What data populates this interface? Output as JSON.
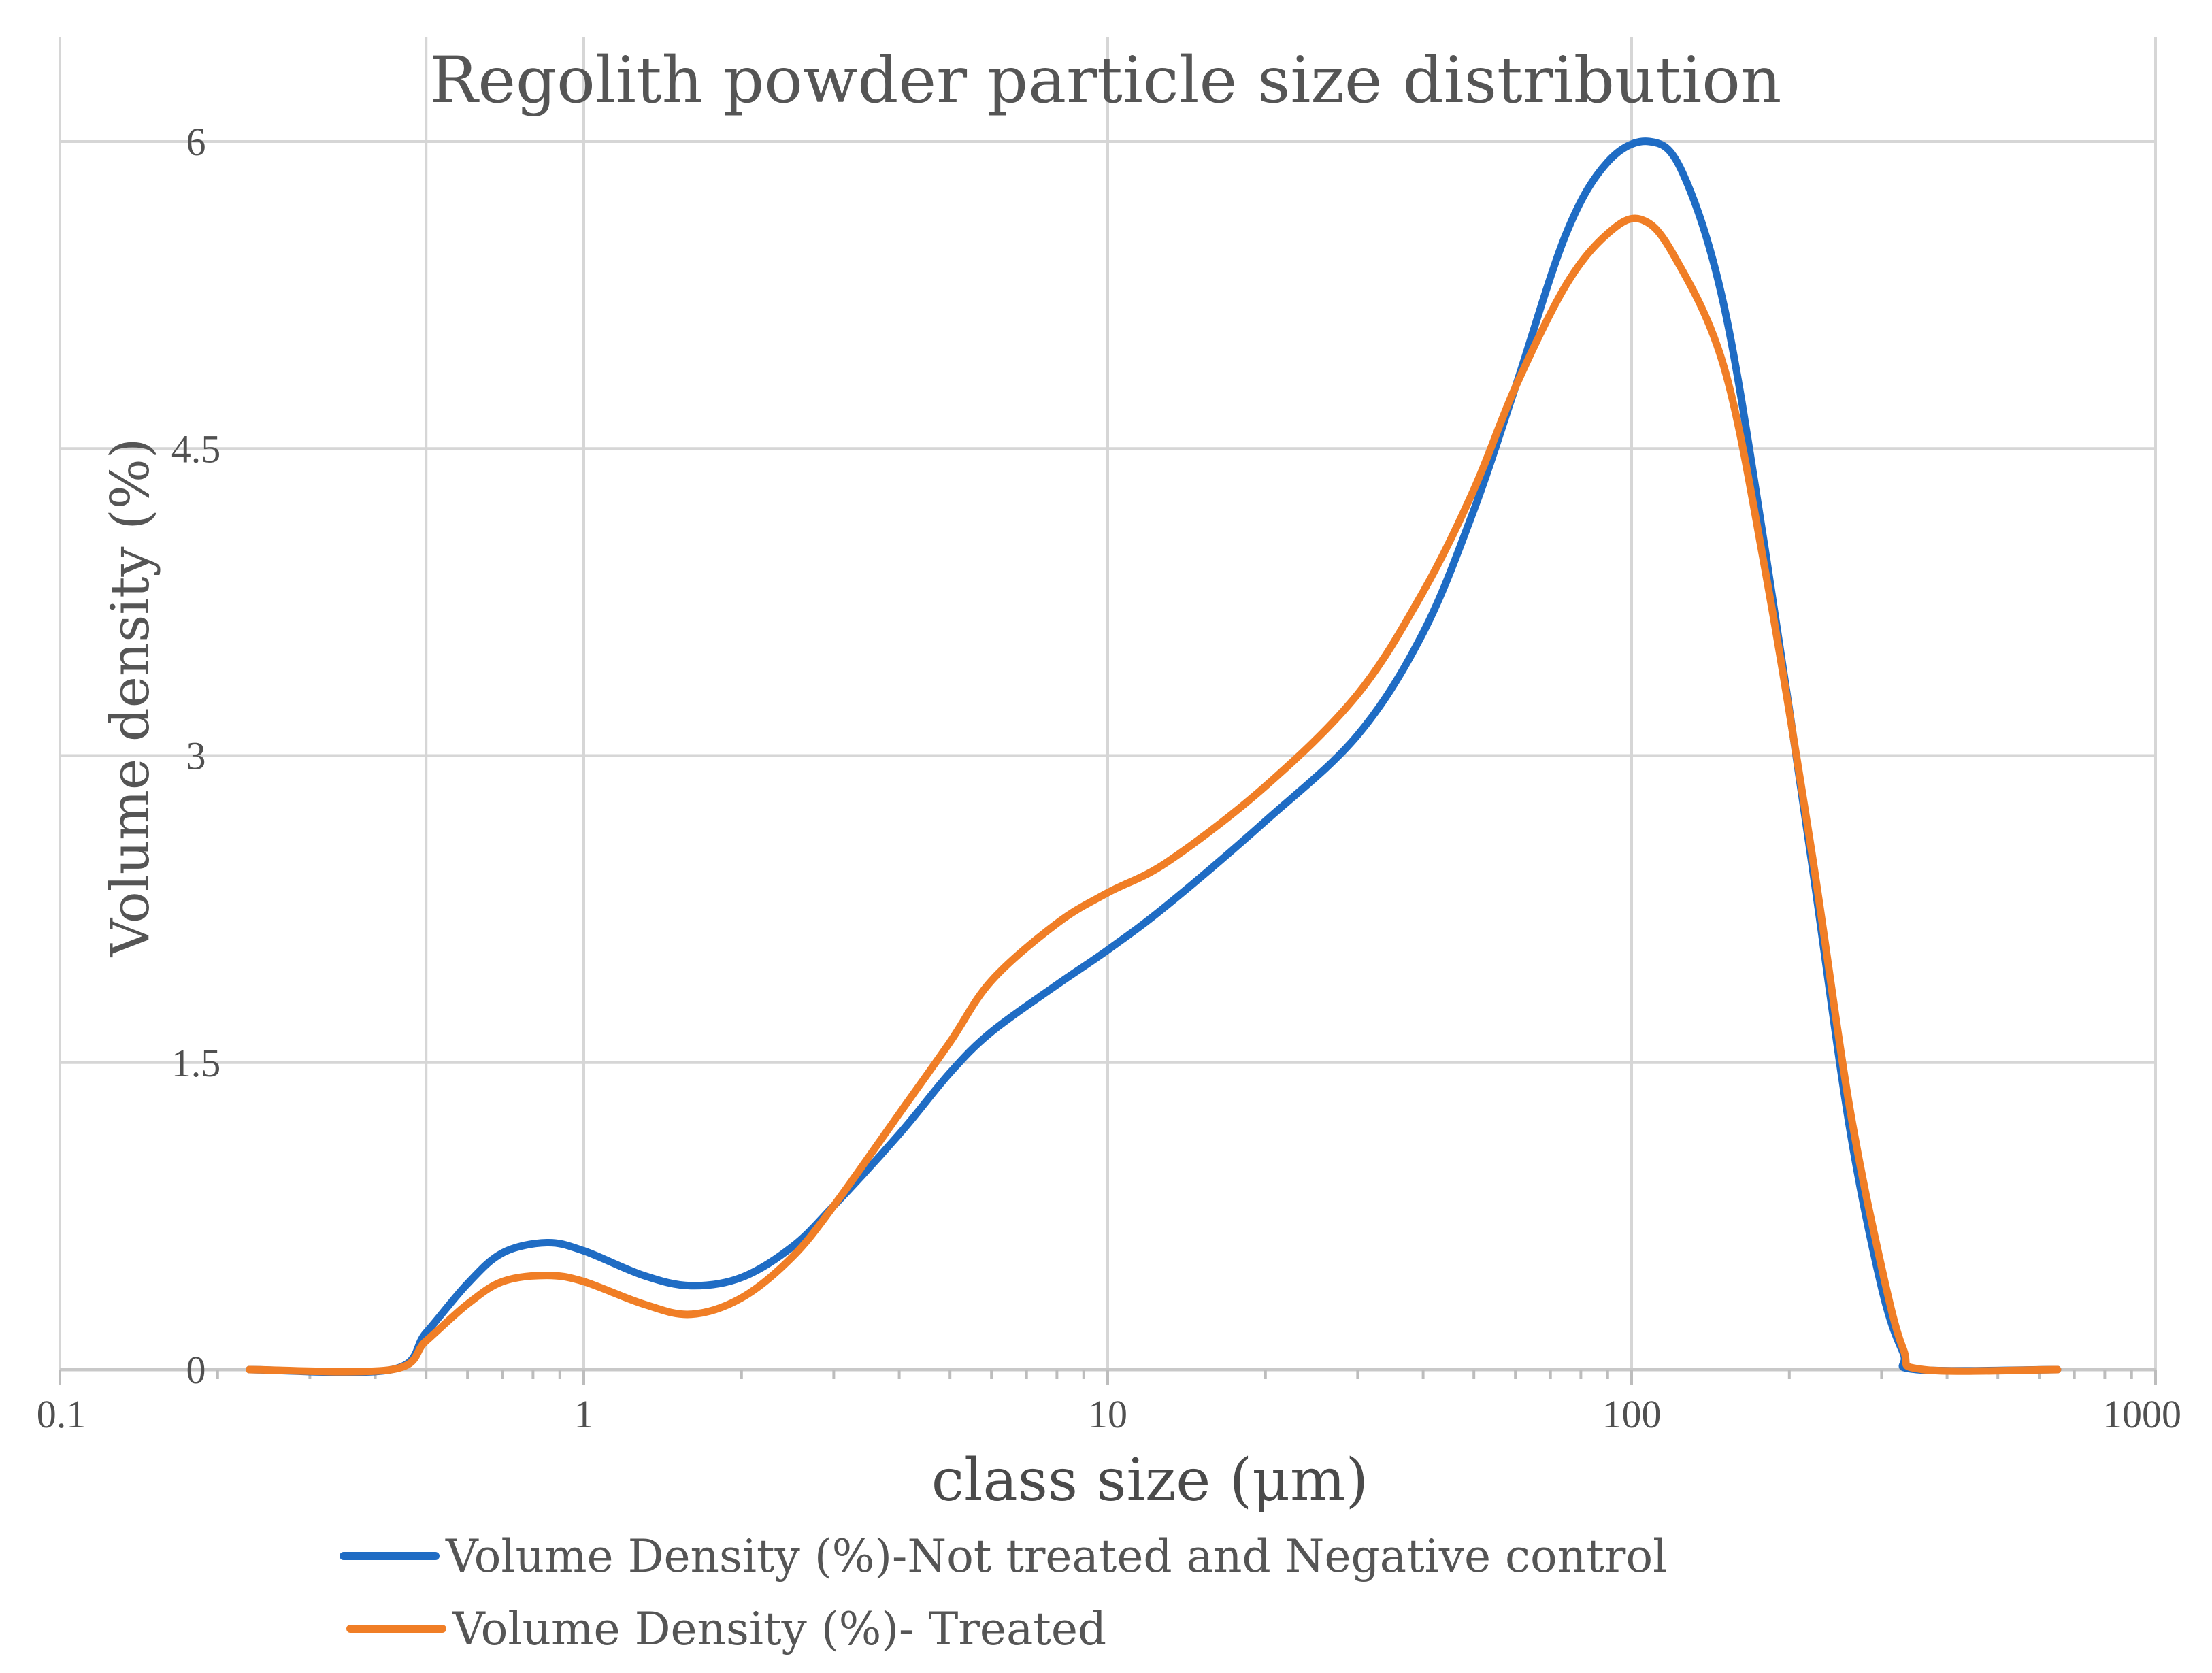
{
  "chart_data": {
    "type": "line",
    "title": "Regolith powder particle size distribution",
    "xlabel": "class size (μm)",
    "ylabel": "Volume density (%)",
    "xscale": "log",
    "xlim": [
      0.1,
      1000
    ],
    "ylim": [
      0,
      6
    ],
    "xticks": [
      0.1,
      1,
      10,
      100,
      1000
    ],
    "xtick_labels": [
      "0.1",
      "1",
      "10",
      "100",
      "1000"
    ],
    "yticks": [
      0,
      1.5,
      3,
      4.5,
      6
    ],
    "ytick_labels": [
      "0",
      "1.5",
      "3",
      "4.5",
      "6"
    ],
    "grid": true,
    "legend_position": "bottom",
    "series": [
      {
        "name": "Volume Density (%)-Not treated and Negative control",
        "color": "#1f6cc4",
        "points": [
          [
            0.23,
            0
          ],
          [
            0.43,
            0
          ],
          [
            0.5,
            0.18
          ],
          [
            0.6,
            0.42
          ],
          [
            0.7,
            0.57
          ],
          [
            0.85,
            0.62
          ],
          [
            1.0,
            0.58
          ],
          [
            1.3,
            0.46
          ],
          [
            1.6,
            0.41
          ],
          [
            2.0,
            0.45
          ],
          [
            2.5,
            0.6
          ],
          [
            3.0,
            0.8
          ],
          [
            4.0,
            1.15
          ],
          [
            5.0,
            1.45
          ],
          [
            6.0,
            1.65
          ],
          [
            8.0,
            1.88
          ],
          [
            10.0,
            2.05
          ],
          [
            13.0,
            2.27
          ],
          [
            20.0,
            2.68
          ],
          [
            30.0,
            3.1
          ],
          [
            40.0,
            3.6
          ],
          [
            50.0,
            4.2
          ],
          [
            60.0,
            4.8
          ],
          [
            75.0,
            5.55
          ],
          [
            90.0,
            5.9
          ],
          [
            108.0,
            6.0
          ],
          [
            125.0,
            5.85
          ],
          [
            150.0,
            5.2
          ],
          [
            180.0,
            4.0
          ],
          [
            220.0,
            2.5
          ],
          [
            260.0,
            1.2
          ],
          [
            300.0,
            0.4
          ],
          [
            330.0,
            0.08
          ],
          [
            350.0,
            0
          ],
          [
            650.0,
            0
          ]
        ]
      },
      {
        "name": "Volume Density (%)- Treated",
        "color": "#f07e26",
        "points": [
          [
            0.23,
            0
          ],
          [
            0.43,
            0
          ],
          [
            0.5,
            0.14
          ],
          [
            0.6,
            0.32
          ],
          [
            0.7,
            0.43
          ],
          [
            0.85,
            0.46
          ],
          [
            1.0,
            0.43
          ],
          [
            1.3,
            0.32
          ],
          [
            1.6,
            0.27
          ],
          [
            2.0,
            0.35
          ],
          [
            2.5,
            0.55
          ],
          [
            3.0,
            0.8
          ],
          [
            4.0,
            1.25
          ],
          [
            5.0,
            1.6
          ],
          [
            6.0,
            1.9
          ],
          [
            8.0,
            2.18
          ],
          [
            10.0,
            2.33
          ],
          [
            13.0,
            2.48
          ],
          [
            20.0,
            2.85
          ],
          [
            30.0,
            3.3
          ],
          [
            40.0,
            3.8
          ],
          [
            50.0,
            4.3
          ],
          [
            60.0,
            4.8
          ],
          [
            75.0,
            5.3
          ],
          [
            90.0,
            5.55
          ],
          [
            104.0,
            5.62
          ],
          [
            120.0,
            5.45
          ],
          [
            150.0,
            4.9
          ],
          [
            180.0,
            3.9
          ],
          [
            220.0,
            2.55
          ],
          [
            260.0,
            1.3
          ],
          [
            300.0,
            0.5
          ],
          [
            330.0,
            0.1
          ],
          [
            360.0,
            0
          ],
          [
            650.0,
            0
          ]
        ]
      }
    ]
  }
}
